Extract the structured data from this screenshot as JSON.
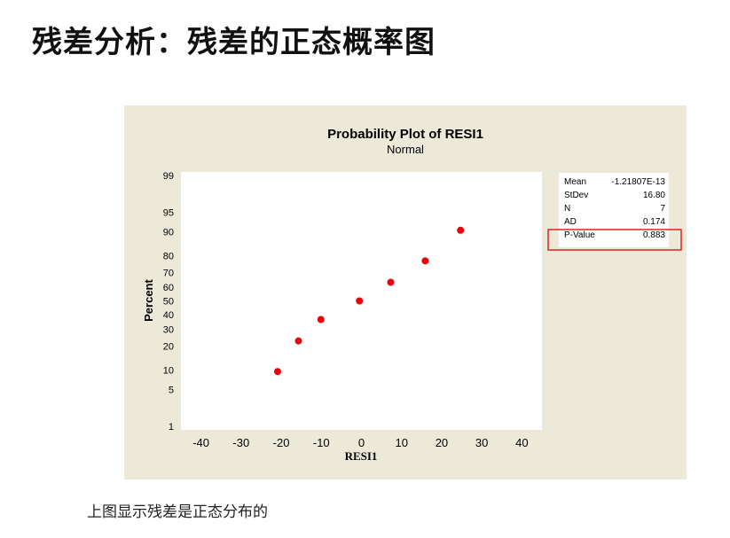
{
  "slide": {
    "title": "残差分析：残差的正态概率图",
    "caption": "上图显示残差是正态分布的"
  },
  "colors": {
    "panel_bg": "#ece9d8",
    "plot_bg": "#ffffff",
    "point": "#e8000b",
    "highlight_box": "#e0231e"
  },
  "chart_data": {
    "type": "scatter",
    "title": "Probability Plot of RESI1",
    "subtitle": "Normal",
    "xlabel": "RESI1",
    "ylabel": "Percent",
    "xlim": [
      -45,
      45
    ],
    "x_ticks": [
      -40,
      -30,
      -20,
      -10,
      0,
      10,
      20,
      30,
      40
    ],
    "ylim": [
      1,
      99
    ],
    "y_scale": "normal-probability",
    "y_ticks": [
      1,
      5,
      10,
      20,
      30,
      40,
      50,
      60,
      70,
      80,
      90,
      95,
      99
    ],
    "grid": false,
    "points": [
      {
        "x": -20.9,
        "y": 9.5
      },
      {
        "x": -15.7,
        "y": 22.9
      },
      {
        "x": -10.1,
        "y": 36.5
      },
      {
        "x": -0.5,
        "y": 50
      },
      {
        "x": 7.3,
        "y": 63.5
      },
      {
        "x": 15.9,
        "y": 77.1
      },
      {
        "x": 24.7,
        "y": 90.5
      }
    ],
    "stats": [
      {
        "label": "Mean",
        "value": "-1.21807E-13"
      },
      {
        "label": "StDev",
        "value": "16.80"
      },
      {
        "label": "N",
        "value": "7"
      },
      {
        "label": "AD",
        "value": "0.174"
      },
      {
        "label": "P-Value",
        "value": "0.883",
        "highlighted": true
      }
    ]
  }
}
